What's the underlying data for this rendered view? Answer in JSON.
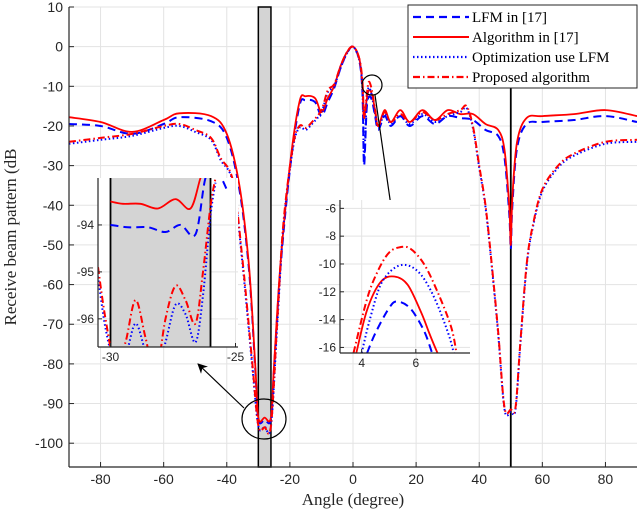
{
  "chart_data": [
    {
      "type": "line",
      "xlabel": "Angle (degree)",
      "ylabel": "Receive beam pattern (dB",
      "xlim": [
        -90,
        90
      ],
      "ylim": [
        -106,
        10
      ],
      "xticks": [
        -80,
        -60,
        -40,
        -20,
        0,
        20,
        40,
        60,
        80
      ],
      "yticks": [
        10,
        0,
        -10,
        -20,
        -30,
        -40,
        -50,
        -60,
        -70,
        -80,
        -90,
        -100
      ],
      "grid": true,
      "legend_position": "top-right",
      "shaded_region": [
        -30,
        -26
      ],
      "vertical_line": 50,
      "series": [
        {
          "name": "LFM in [17]",
          "color": "#0000ff",
          "style": "dashed",
          "x": [
            -90,
            -80,
            -70,
            -60,
            -55,
            -45,
            -40,
            -36,
            -33,
            -31,
            -30,
            -28,
            -26,
            -25,
            -23,
            -20,
            -17,
            -15,
            -12,
            -10,
            -8,
            -6,
            -4,
            -2,
            0,
            2,
            3,
            3.5,
            4.3,
            5,
            6,
            7,
            8,
            10,
            12,
            15,
            18,
            22,
            26,
            30,
            34,
            38,
            42,
            46,
            48,
            49.5,
            50,
            50.5,
            52,
            55,
            60,
            70,
            80,
            90
          ],
          "y": [
            -19.5,
            -20,
            -22,
            -19.5,
            -17.8,
            -18.8,
            -23,
            -36,
            -56,
            -81,
            -94,
            -94.1,
            -94,
            -81,
            -56,
            -31,
            -15,
            -13.5,
            -14,
            -17.5,
            -14,
            -10.5,
            -5.5,
            -1.8,
            0,
            -3.5,
            -12,
            -30,
            -16,
            -12.7,
            -13.5,
            -17.5,
            -21,
            -17.5,
            -20,
            -17.5,
            -20,
            -17.5,
            -19.5,
            -17.5,
            -18,
            -18.5,
            -21,
            -22.5,
            -28,
            -42,
            -51,
            -40,
            -25.5,
            -19.5,
            -19,
            -18.5,
            -17.5,
            -19
          ]
        },
        {
          "name": "Algorithm in [17]",
          "color": "#ff0000",
          "style": "solid",
          "x": [
            -90,
            -80,
            -70,
            -60,
            -55,
            -45,
            -40,
            -36,
            -33,
            -31,
            -30,
            -28,
            -26,
            -25,
            -23,
            -20,
            -17,
            -15,
            -12,
            -10,
            -8,
            -6,
            -4,
            -2,
            0,
            2,
            3,
            3.5,
            4.3,
            5,
            6,
            7,
            8,
            10,
            12,
            15,
            18,
            22,
            26,
            30,
            34,
            38,
            42,
            46,
            48,
            49.5,
            50,
            50.5,
            52,
            55,
            60,
            70,
            80,
            90
          ],
          "y": [
            -17.8,
            -19,
            -21.5,
            -18.5,
            -16.8,
            -17.5,
            -22,
            -35,
            -55,
            -80,
            -93.6,
            -93.55,
            -93.5,
            -80,
            -55,
            -30,
            -14,
            -12.5,
            -13,
            -16.5,
            -13,
            -10,
            -5,
            -1.5,
            0,
            -3,
            -10,
            -18,
            -13.5,
            -11,
            -12,
            -16,
            -20,
            -16,
            -19,
            -16,
            -19,
            -16,
            -18.5,
            -16,
            -17,
            -17,
            -19.5,
            -21,
            -26,
            -40,
            -50,
            -38,
            -24,
            -18,
            -17.5,
            -17,
            -16,
            -17.5
          ]
        },
        {
          "name": "Optimization use LFM",
          "color": "#0000ff",
          "style": "dotted",
          "x": [
            -90,
            -80,
            -70,
            -60,
            -55,
            -50,
            -45,
            -42,
            -38,
            -35,
            -32,
            -30,
            -28,
            -26,
            -24,
            -22,
            -19,
            -17,
            -15,
            -13,
            -10,
            -8,
            -6,
            -4,
            -2,
            0,
            2,
            3,
            3.5,
            4.3,
            5,
            6,
            7,
            8,
            10,
            12,
            15,
            18,
            22,
            26,
            30,
            34,
            36,
            38,
            40,
            42,
            44,
            46,
            48,
            50,
            51.5,
            53,
            55,
            57,
            60,
            65,
            70,
            80,
            90
          ],
          "y": [
            -24.5,
            -23.5,
            -22.5,
            -20.5,
            -20,
            -21.5,
            -23.5,
            -28.5,
            -34.5,
            -55,
            -80,
            -95.6,
            -95.8,
            -95.6,
            -70,
            -45,
            -25.5,
            -20.5,
            -21,
            -19.5,
            -16.5,
            -11.5,
            -10,
            -5.5,
            -1.8,
            0,
            -3.5,
            -11,
            -28,
            -14,
            -10.3,
            -12.5,
            -17,
            -20.5,
            -17,
            -19.5,
            -17.5,
            -19.5,
            -17,
            -19,
            -17.5,
            -16.5,
            -15.5,
            -20.5,
            -30.5,
            -40.5,
            -55.5,
            -72.5,
            -91.5,
            -92,
            -91.5,
            -75.5,
            -55.5,
            -45.5,
            -36.5,
            -30.5,
            -27.5,
            -24.5,
            -24
          ]
        },
        {
          "name": "Proposed algorithm",
          "color": "#ff0000",
          "style": "dashdot",
          "x": [
            -90,
            -80,
            -70,
            -60,
            -55,
            -50,
            -45,
            -42,
            -38,
            -35,
            -32,
            -30,
            -28,
            -26,
            -24,
            -22,
            -19,
            -17,
            -15,
            -13,
            -10,
            -8,
            -6,
            -4,
            -2,
            0,
            2,
            3,
            3.5,
            4.3,
            5,
            6,
            7,
            8,
            10,
            12,
            15,
            18,
            22,
            26,
            30,
            34,
            36,
            38,
            40,
            42,
            44,
            46,
            48,
            50,
            51.5,
            53,
            55,
            57,
            60,
            65,
            70,
            80,
            90
          ],
          "y": [
            -24,
            -23,
            -22,
            -20,
            -19.5,
            -21,
            -23,
            -28,
            -34,
            -54,
            -79,
            -95.5,
            -96,
            -95.5,
            -69,
            -44,
            -25,
            -20,
            -20.5,
            -19,
            -16,
            -11,
            -9.5,
            -5,
            -1.5,
            0,
            -3,
            -9,
            -18,
            -12.5,
            -8.9,
            -11,
            -16,
            -20,
            -16.5,
            -19,
            -17,
            -19,
            -16.5,
            -18.5,
            -17,
            -16,
            -15,
            -20,
            -30,
            -40,
            -55,
            -72,
            -91,
            -91.5,
            -91,
            -75,
            -55,
            -45,
            -36,
            -30,
            -27,
            -24,
            -23.5
          ]
        }
      ]
    },
    {
      "type": "line",
      "inset": "zoom of null near -28 degree",
      "xlim": [
        -30.5,
        -24.9
      ],
      "ylim": [
        -96.6,
        -93.0
      ],
      "xticks": [
        -30,
        -25
      ],
      "yticks": [
        -94,
        -95,
        -96
      ],
      "series": [
        {
          "name": "LFM in [17]",
          "x": [
            -30,
            -29.3,
            -28.5,
            -27.8,
            -27.2,
            -26.6,
            -26.2,
            -25.8,
            -25.3
          ],
          "y": [
            -94.0,
            -94.05,
            -94.05,
            -94.15,
            -94.0,
            -94.2,
            -93.0,
            -92.8,
            -93.3
          ]
        },
        {
          "name": "Algorithm in [17]",
          "x": [
            -30,
            -29.5,
            -28.8,
            -28.1,
            -27.4,
            -26.8,
            -26.4,
            -26.1
          ],
          "y": [
            -93.5,
            -93.55,
            -93.55,
            -93.65,
            -93.45,
            -93.65,
            -93.0,
            -92.6
          ]
        },
        {
          "name": "Optimization use LFM",
          "x": [
            -30.5,
            -30.2,
            -29.8,
            -29.4,
            -29.0,
            -28.6,
            -28.2,
            -27.8,
            -27.4,
            -27.0,
            -26.6,
            -26.3,
            -26.0,
            -25.8
          ],
          "y": [
            -95.1,
            -96.2,
            -97.0,
            -96.8,
            -96.1,
            -96.7,
            -97.2,
            -96.5,
            -95.7,
            -95.9,
            -96.5,
            -95.5,
            -93.8,
            -93.1
          ]
        },
        {
          "name": "Proposed algorithm",
          "x": [
            -30.5,
            -30.2,
            -29.8,
            -29.4,
            -29.0,
            -28.6,
            -28.2,
            -27.8,
            -27.4,
            -27.0,
            -26.6,
            -26.3,
            -26.0,
            -25.8
          ],
          "y": [
            -94.9,
            -96.0,
            -97.0,
            -96.5,
            -95.6,
            -96.4,
            -97.2,
            -96.0,
            -95.3,
            -95.6,
            -96.1,
            -95.0,
            -93.6,
            -93.0
          ]
        }
      ]
    },
    {
      "type": "line",
      "inset": "zoom of sidelobe near 5 degree",
      "xlim": [
        3.2,
        8.0
      ],
      "ylim": [
        -16.4,
        -5.4
      ],
      "xticks": [
        4,
        6
      ],
      "yticks": [
        -6,
        -8,
        -10,
        -12,
        -14,
        -16
      ],
      "series": [
        {
          "name": "LFM in [17]",
          "x": [
            4.2,
            4.5,
            5.0,
            5.3,
            5.8,
            6.3,
            6.6
          ],
          "y": [
            -16.4,
            -15,
            -13.2,
            -12.7,
            -13.2,
            -14.8,
            -16.4
          ]
        },
        {
          "name": "Algorithm in [17]",
          "x": [
            3.8,
            4.2,
            4.7,
            5.2,
            5.7,
            6.2,
            6.5,
            6.8
          ],
          "y": [
            -16.4,
            -13.3,
            -11.3,
            -10.9,
            -11.5,
            -13.5,
            -15,
            -16.4
          ]
        },
        {
          "name": "Optimization use LFM",
          "x": [
            4.0,
            4.3,
            4.7,
            5.2,
            5.7,
            6.2,
            6.7,
            7.2,
            7.4
          ],
          "y": [
            -16.4,
            -14,
            -11.5,
            -10.3,
            -10.1,
            -10.8,
            -12.5,
            -15,
            -16.4
          ]
        },
        {
          "name": "Proposed algorithm",
          "x": [
            3.7,
            4.2,
            4.6,
            5.0,
            5.4,
            5.8,
            6.3,
            6.8,
            7.3,
            7.5
          ],
          "y": [
            -16.4,
            -12.5,
            -10.5,
            -9.2,
            -8.8,
            -8.9,
            -10,
            -12,
            -14.5,
            -16.4
          ]
        }
      ]
    }
  ]
}
